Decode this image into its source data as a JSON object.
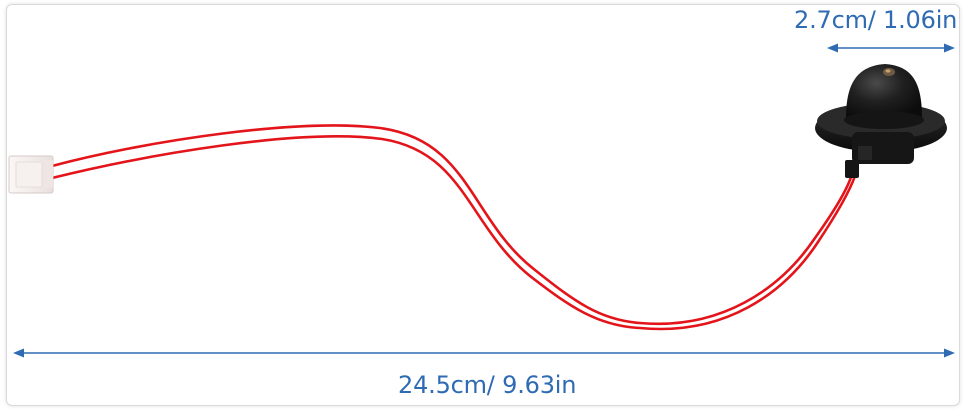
{
  "image": {
    "subject": "photo-sensor-with-red-lead-wire",
    "background_color": "#ffffff",
    "wire_color": "#e3141a",
    "sensor_color": "#1a1a1a",
    "connector_color": "#f3ecea",
    "dimension_color": "#2f6bb3",
    "icons": [
      "double-arrow-icon"
    ]
  },
  "dimensions": {
    "sensor_diameter": "2.7cm/ 1.06in",
    "total_length": "24.5cm/ 9.63in"
  }
}
